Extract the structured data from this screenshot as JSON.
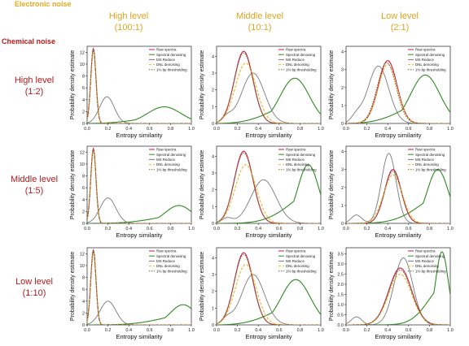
{
  "header": {
    "electronic_noise": "Electronic noise",
    "chemical_noise": "Chemical noise",
    "columns": [
      {
        "level": "High level",
        "ratio": "(100:1)"
      },
      {
        "level": "Middle level",
        "ratio": "(10:1)"
      },
      {
        "level": "Low level",
        "ratio": "(2:1)"
      }
    ],
    "rows": [
      {
        "level": "High level",
        "ratio": "(1:2)"
      },
      {
        "level": "Middle level",
        "ratio": "(1:5)"
      },
      {
        "level": "Low level",
        "ratio": "(1:10)"
      }
    ]
  },
  "colors": {
    "raw": "#c4174a",
    "spectral": "#2e8b22",
    "ms": "#7a7a7a",
    "dnl": "#f0b41e",
    "threshold": "#7a6a2a"
  },
  "chart_data": [
    {
      "type": "line",
      "panel": "r1c1",
      "xlabel": "Entropy similarity",
      "ylabel": "Probability density estimate",
      "xlim": [
        0,
        1
      ],
      "ylim": [
        0,
        13
      ],
      "yticks": [
        0,
        2,
        4,
        6,
        8,
        10,
        12
      ],
      "xticks": [
        "0.0",
        "0.2",
        "0.4",
        "0.6",
        "0.8",
        "1.0"
      ],
      "legend": [
        "Raw spectra",
        "Spectral denoising",
        "MS Reduce",
        "DNL denoising",
        "1% bp thresholding"
      ],
      "peaks": {
        "raw": [
          0.06,
          12.6,
          0.025
        ],
        "spectral": [
          0.74,
          2.8,
          0.16
        ],
        "ms": [
          0.19,
          4.5,
          0.07
        ],
        "dnl": [
          0.06,
          12.3,
          0.025
        ],
        "threshold": [
          0.06,
          12.4,
          0.025
        ]
      }
    },
    {
      "type": "line",
      "panel": "r1c2",
      "xlabel": "Entropy similarity",
      "ylabel": "Probability density estimate",
      "xlim": [
        0,
        1
      ],
      "ylim": [
        0,
        4.6
      ],
      "yticks": [
        0,
        1,
        2,
        3,
        4
      ],
      "xticks": [
        "0.0",
        "0.2",
        "0.4",
        "0.6",
        "0.8",
        "1.0"
      ],
      "legend": [
        "Raw spectra",
        "Spectral denoising",
        "MS Reduce",
        "DNL denoising",
        "1% bp thresholding"
      ],
      "peaks": {
        "raw": [
          0.26,
          4.3,
          0.09
        ],
        "spectral": [
          0.75,
          2.7,
          0.14
        ],
        "ms": [
          0.35,
          3.0,
          0.11
        ],
        "dnl": [
          0.28,
          3.6,
          0.1
        ],
        "threshold": [
          0.26,
          4.2,
          0.09
        ]
      }
    },
    {
      "type": "line",
      "panel": "r1c3",
      "xlabel": "Entropy similarity",
      "ylabel": "Probability density estimate",
      "xlim": [
        0,
        1
      ],
      "ylim": [
        0,
        4.3
      ],
      "yticks": [
        0,
        1,
        2,
        3,
        4
      ],
      "xticks": [
        "0.0",
        "0.2",
        "0.4",
        "0.6",
        "0.8",
        "1.0"
      ],
      "legend": [
        "Raw spectra",
        "Spectral denoising",
        "MS Reduce",
        "DNL denoising",
        "1% bp thresholding"
      ],
      "peaks": {
        "raw": [
          0.4,
          3.5,
          0.09
        ],
        "spectral": [
          0.76,
          2.7,
          0.14
        ],
        "ms": [
          0.31,
          3.2,
          0.1
        ],
        "dnl": [
          0.4,
          3.3,
          0.09
        ],
        "threshold": [
          0.39,
          3.4,
          0.09
        ]
      }
    },
    {
      "type": "line",
      "panel": "r2c1",
      "xlabel": "Entropy similarity",
      "ylabel": "Probability density estimate",
      "xlim": [
        0,
        1
      ],
      "ylim": [
        0,
        13
      ],
      "yticks": [
        0,
        2,
        4,
        6,
        8,
        10,
        12
      ],
      "xticks": [
        "0.0",
        "0.2",
        "0.4",
        "0.6",
        "0.8",
        "1.0"
      ],
      "legend": [
        "Raw spectra",
        "Spectral denoising",
        "MS Reduce",
        "DNL denoising",
        "1% bp thresholding"
      ],
      "peaks": {
        "raw": [
          0.06,
          12.6,
          0.025
        ],
        "spectral": [
          0.88,
          3.0,
          0.13
        ],
        "ms": [
          0.2,
          4.3,
          0.075
        ],
        "dnl": [
          0.06,
          12.3,
          0.025
        ],
        "threshold": [
          0.06,
          12.4,
          0.025
        ]
      }
    },
    {
      "type": "line",
      "panel": "r2c2",
      "xlabel": "Entropy similarity",
      "ylabel": "Probability density estimate",
      "xlim": [
        0,
        1
      ],
      "ylim": [
        0,
        4.6
      ],
      "yticks": [
        0,
        1,
        2,
        3,
        4
      ],
      "xticks": [
        "0.0",
        "0.2",
        "0.4",
        "0.6",
        "0.8",
        "1.0"
      ],
      "legend": [
        "Raw spectra",
        "Spectral denoising",
        "MS Reduce",
        "DNL denoising",
        "1% bp thresholding"
      ],
      "peaks": {
        "raw": [
          0.26,
          4.3,
          0.09
        ],
        "spectral": [
          0.88,
          3.5,
          0.1
        ],
        "ms": [
          0.45,
          2.6,
          0.12
        ],
        "dnl": [
          0.28,
          3.5,
          0.1
        ],
        "threshold": [
          0.26,
          4.2,
          0.09
        ]
      }
    },
    {
      "type": "line",
      "panel": "r2c3",
      "xlabel": "Entropy similarity",
      "ylabel": "Probability density estimate",
      "xlim": [
        0,
        1
      ],
      "ylim": [
        0,
        4.3
      ],
      "yticks": [
        0,
        1,
        2,
        3,
        4
      ],
      "xticks": [
        "0.0",
        "0.2",
        "0.4",
        "0.6",
        "0.8",
        "1.0"
      ],
      "legend": [
        "Raw spectra",
        "Spectral denoising",
        "MS Reduce",
        "DNL denoising",
        "1% bp thresholding"
      ],
      "peaks": {
        "raw": [
          0.45,
          3.0,
          0.08
        ],
        "spectral": [
          0.88,
          3.0,
          0.1
        ],
        "ms": [
          0.41,
          3.9,
          0.07
        ],
        "dnl": [
          0.45,
          2.7,
          0.09
        ],
        "threshold": [
          0.45,
          2.9,
          0.08
        ]
      }
    },
    {
      "type": "line",
      "panel": "r3c1",
      "xlabel": "Entropy similarity",
      "ylabel": "Probability density estimate",
      "xlim": [
        0,
        1
      ],
      "ylim": [
        0,
        13
      ],
      "yticks": [
        0,
        2,
        4,
        6,
        8,
        10,
        12
      ],
      "xticks": [
        "0.0",
        "0.2",
        "0.4",
        "0.6",
        "0.8",
        "1.0"
      ],
      "legend": [
        "Raw spectra",
        "Spectral denoising",
        "MS Reduce",
        "DNL denoising",
        "1% bp thresholding"
      ],
      "peaks": {
        "raw": [
          0.06,
          12.6,
          0.025
        ],
        "spectral": [
          0.92,
          3.4,
          0.12
        ],
        "ms": [
          0.2,
          4.0,
          0.075
        ],
        "dnl": [
          0.06,
          12.3,
          0.025
        ],
        "threshold": [
          0.06,
          12.4,
          0.025
        ]
      }
    },
    {
      "type": "line",
      "panel": "r3c2",
      "xlabel": "Entropy similarity",
      "ylabel": "Probability density estimate",
      "xlim": [
        0,
        1
      ],
      "ylim": [
        0,
        4.6
      ],
      "yticks": [
        0,
        1,
        2,
        3,
        4
      ],
      "xticks": [
        "0.0",
        "0.2",
        "0.4",
        "0.6",
        "0.8",
        "1.0"
      ],
      "legend": [
        "Raw spectra",
        "Spectral denoising",
        "MS Reduce",
        "DNL denoising",
        "1% bp thresholding"
      ],
      "peaks": {
        "raw": [
          0.26,
          4.3,
          0.09
        ],
        "spectral": [
          0.76,
          2.7,
          0.14
        ],
        "ms": [
          0.35,
          3.0,
          0.11
        ],
        "dnl": [
          0.28,
          3.6,
          0.1
        ],
        "threshold": [
          0.26,
          4.2,
          0.09
        ]
      }
    },
    {
      "type": "line",
      "panel": "r3c3",
      "xlabel": "Entropy similarity",
      "ylabel": "Probability density estimate",
      "xlim": [
        0,
        1
      ],
      "ylim": [
        0,
        3.8
      ],
      "yticks": [
        "0.0",
        "0.5",
        "1.0",
        "1.5",
        "2.0",
        "2.5",
        "3.0",
        "3.5"
      ],
      "xticks": [
        "0.0",
        "0.2",
        "0.4",
        "0.6",
        "0.8",
        "1.0"
      ],
      "legend": [
        "Raw spectra",
        "Spectral denoising",
        "MS Reduce",
        "DNL denoising",
        "1% bp thresholding"
      ],
      "peaks": {
        "raw": [
          0.52,
          2.8,
          0.11
        ],
        "spectral": [
          0.92,
          3.6,
          0.06
        ],
        "ms": [
          0.55,
          3.3,
          0.09
        ],
        "dnl": [
          0.52,
          2.5,
          0.11
        ],
        "threshold": [
          0.52,
          2.7,
          0.11
        ]
      }
    }
  ]
}
